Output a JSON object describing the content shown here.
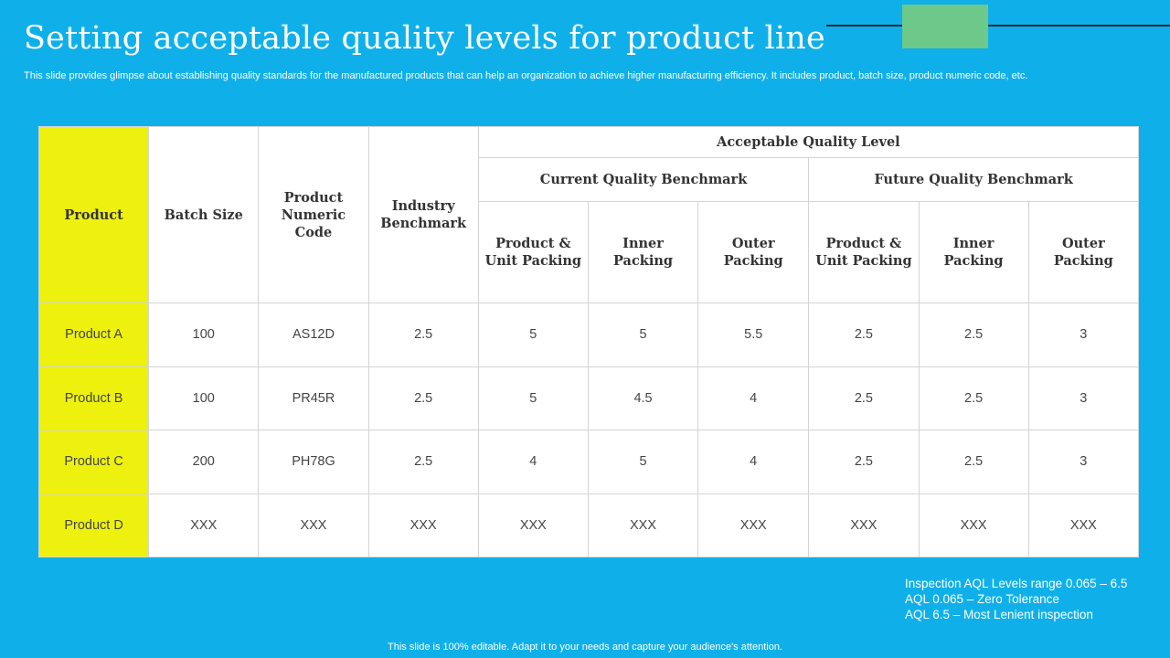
{
  "title": "Setting acceptable quality levels for product line",
  "subtitle": "This slide provides glimpse about establishing quality standards for the manufactured products that can help an organization to achieve higher manufacturing efficiency. It includes product, batch size, product numeric code, etc.",
  "table": {
    "headers": {
      "product": "Product",
      "batch_size": "Batch Size",
      "numeric_code": "Product Numeric Code",
      "industry_benchmark": "Industry Benchmark",
      "aql": "Acceptable Quality Level",
      "current": "Current Quality Benchmark",
      "future": "Future Quality Benchmark",
      "sub": [
        "Product & Unit Packing",
        "Inner Packing",
        "Outer Packing",
        "Product & Unit Packing",
        "Inner Packing",
        "Outer Packing"
      ]
    },
    "rows": [
      [
        "Product A",
        "100",
        "AS12D",
        "2.5",
        "5",
        "5",
        "5.5",
        "2.5",
        "2.5",
        "3"
      ],
      [
        "Product B",
        "100",
        "PR45R",
        "2.5",
        "5",
        "4.5",
        "4",
        "2.5",
        "2.5",
        "3"
      ],
      [
        "Product C",
        "200",
        "PH78G",
        "2.5",
        "4",
        "5",
        "4",
        "2.5",
        "2.5",
        "3"
      ],
      [
        "Product D",
        "XXX",
        "XXX",
        "XXX",
        "XXX",
        "XXX",
        "XXX",
        "XXX",
        "XXX",
        "XXX"
      ]
    ]
  },
  "notes": [
    "Inspection AQL Levels range 0.065 – 6.5",
    "AQL 0.065  – Zero Tolerance",
    "AQL 6.5 – Most Lenient inspection"
  ],
  "footer": "This slide is 100% editable. Adapt it to your needs and capture your audience's attention.",
  "colors": {
    "background": "#0fb0ea",
    "product_column": "#eef10d",
    "accent_box": "#6cc98a"
  }
}
